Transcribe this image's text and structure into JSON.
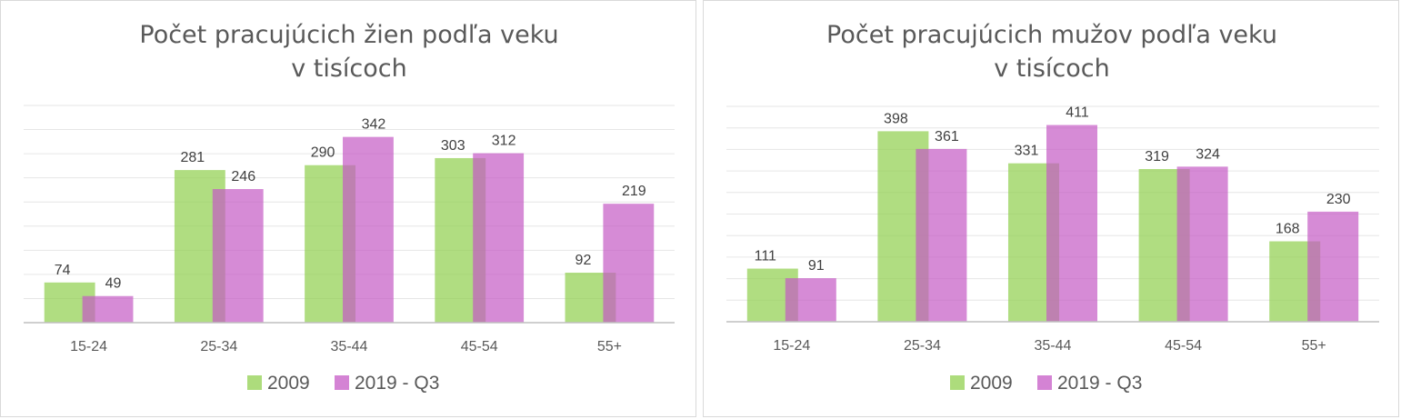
{
  "chart_data": [
    {
      "type": "bar",
      "title": [
        "Počet pracujúcich žien podľa veku",
        "v tisícoch"
      ],
      "categories": [
        "15-24",
        "25-34",
        "35-44",
        "45-54",
        "55+"
      ],
      "series": [
        {
          "name": "2009",
          "values": [
            74,
            281,
            290,
            303,
            92
          ],
          "color": "#92d050"
        },
        {
          "name": "2019 - Q3",
          "values": [
            49,
            246,
            342,
            312,
            219
          ],
          "color": "#c55ac5"
        }
      ],
      "ylim": [
        0,
        400
      ],
      "grid": true,
      "legend": "bottom",
      "data_labels": true
    },
    {
      "type": "bar",
      "title": [
        "Počet pracujúcich mužov podľa veku",
        "v tisícoch"
      ],
      "categories": [
        "15-24",
        "25-34",
        "35-44",
        "45-54",
        "55+"
      ],
      "series": [
        {
          "name": "2009",
          "values": [
            111,
            398,
            331,
            319,
            168
          ],
          "color": "#92d050"
        },
        {
          "name": "2019 - Q3",
          "values": [
            91,
            361,
            411,
            324,
            230
          ],
          "color": "#c55ac5"
        }
      ],
      "ylim": [
        0,
        450
      ],
      "grid": true,
      "legend": "bottom",
      "data_labels": true
    }
  ]
}
